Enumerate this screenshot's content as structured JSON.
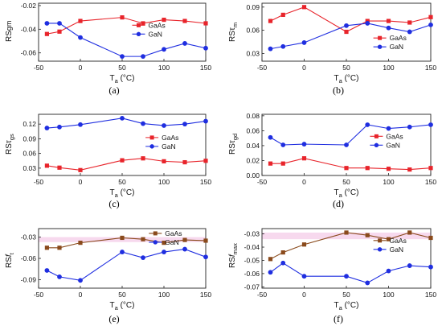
{
  "colors": {
    "GaAs": "#e8242b",
    "GaN": "#1f2ee0",
    "GaAs_brown": "#8a4a1c",
    "highlight": "#f7d9ee"
  },
  "chart_data": [
    {
      "type": "line",
      "panel_label": "(a)",
      "ylabel": "RS",
      "ylabel_sub": "gm",
      "ylabel_prefix_sub": "",
      "xlabel": "T",
      "xlabel_sub": "a",
      "xlabel_unit": " (°C)",
      "x": [
        -40,
        -25,
        0,
        50,
        75,
        100,
        125,
        150
      ],
      "xlim": [
        -50,
        150
      ],
      "xticks": [
        "-50",
        "0",
        "50",
        "100",
        "150"
      ],
      "xtick_values": [
        -50,
        0,
        50,
        100,
        150
      ],
      "ylim": [
        -0.067,
        -0.018
      ],
      "yticks": [
        "-0.02",
        "-0.04",
        "-0.06"
      ],
      "ytick_values": [
        -0.02,
        -0.04,
        -0.06
      ],
      "legend": "middle-right",
      "series": [
        {
          "name": "GaAs",
          "color": "GaAs",
          "marker": "square",
          "values": [
            -0.044,
            -0.042,
            -0.033,
            -0.03,
            -0.035,
            -0.032,
            -0.033,
            -0.035
          ]
        },
        {
          "name": "GaN",
          "color": "GaN",
          "marker": "circle",
          "values": [
            -0.035,
            -0.035,
            -0.047,
            -0.063,
            -0.063,
            -0.057,
            -0.052,
            -0.056
          ]
        }
      ]
    },
    {
      "type": "line",
      "panel_label": "(b)",
      "ylabel": "RS",
      "ylabel_sub": "m",
      "ylabel_greek": "τ",
      "xlabel": "T",
      "xlabel_sub": "a",
      "xlabel_unit": " (°C)",
      "x": [
        -40,
        -25,
        0,
        50,
        75,
        100,
        125,
        150
      ],
      "xlim": [
        -50,
        150
      ],
      "xticks": [
        "-50",
        "0",
        "50",
        "100",
        "150"
      ],
      "xtick_values": [
        -50,
        0,
        50,
        100,
        150
      ],
      "ylim": [
        0.02,
        0.095
      ],
      "yticks": [
        "0.09",
        "0.06",
        "0.03"
      ],
      "ytick_values": [
        0.09,
        0.06,
        0.03
      ],
      "legend": "bottom-right",
      "series": [
        {
          "name": "GaAs",
          "color": "GaAs",
          "marker": "square",
          "values": [
            0.072,
            0.08,
            0.09,
            0.058,
            0.072,
            0.072,
            0.07,
            0.077
          ]
        },
        {
          "name": "GaN",
          "color": "GaN",
          "marker": "circle",
          "values": [
            0.036,
            0.039,
            0.044,
            0.066,
            0.069,
            0.063,
            0.058,
            0.067
          ]
        }
      ]
    },
    {
      "type": "line",
      "panel_label": "(c)",
      "ylabel": "RS",
      "ylabel_sub": "gs",
      "ylabel_greek": "τ",
      "xlabel": "T",
      "xlabel_sub": "a",
      "xlabel_unit": " (°C)",
      "x": [
        -40,
        -25,
        0,
        50,
        75,
        100,
        125,
        150
      ],
      "xlim": [
        -50,
        150
      ],
      "xticks": [
        "-50",
        "0",
        "50",
        "100",
        "150"
      ],
      "xtick_values": [
        -50,
        0,
        50,
        100,
        150
      ],
      "ylim": [
        0.015,
        0.14
      ],
      "yticks": [
        "0.12",
        "0.09",
        "0.06",
        "0.03"
      ],
      "ytick_values": [
        0.12,
        0.09,
        0.06,
        0.03
      ],
      "legend": "middle-right",
      "series": [
        {
          "name": "GaAs",
          "color": "GaAs",
          "marker": "square",
          "values": [
            0.035,
            0.031,
            0.026,
            0.046,
            0.05,
            0.044,
            0.042,
            0.045
          ]
        },
        {
          "name": "GaN",
          "color": "GaN",
          "marker": "circle",
          "values": [
            0.112,
            0.114,
            0.119,
            0.132,
            0.121,
            0.117,
            0.12,
            0.126
          ]
        }
      ]
    },
    {
      "type": "line",
      "panel_label": "(d)",
      "ylabel": "RS",
      "ylabel_sub": "gd",
      "ylabel_greek": "τ",
      "xlabel": "T",
      "xlabel_sub": "a",
      "xlabel_unit": " (°C)",
      "x": [
        -40,
        -25,
        0,
        50,
        75,
        100,
        125,
        150
      ],
      "xlim": [
        -50,
        150
      ],
      "xticks": [
        "-50",
        "0",
        "50",
        "100",
        "150"
      ],
      "xtick_values": [
        -50,
        0,
        50,
        100,
        150
      ],
      "ylim": [
        0.0,
        0.082
      ],
      "yticks": [
        "0.08",
        "0.06",
        "0.04",
        "0.02",
        "0.00"
      ],
      "ytick_values": [
        0.08,
        0.06,
        0.04,
        0.02,
        0.0
      ],
      "legend": "middle-right",
      "series": [
        {
          "name": "GaAs",
          "color": "GaAs",
          "marker": "square",
          "values": [
            0.016,
            0.016,
            0.023,
            0.01,
            0.01,
            0.009,
            0.008,
            0.01
          ]
        },
        {
          "name": "GaN",
          "color": "GaN",
          "marker": "circle",
          "values": [
            0.051,
            0.041,
            0.042,
            0.041,
            0.068,
            0.063,
            0.065,
            0.068
          ]
        }
      ]
    },
    {
      "type": "line",
      "panel_label": "(e)",
      "ylabel": "RS",
      "ylabel_sub": "ft",
      "ylabel_script": "f",
      "ylabel_script_sub": "t",
      "xlabel": "T",
      "xlabel_sub": "a",
      "xlabel_unit": " (°C)",
      "x": [
        -40,
        -25,
        0,
        50,
        75,
        100,
        125,
        150
      ],
      "xlim": [
        -50,
        150
      ],
      "xticks": [
        "-50",
        "0",
        "50",
        "100",
        "150"
      ],
      "xtick_values": [
        -50,
        0,
        50,
        100,
        150
      ],
      "ylim": [
        -0.102,
        -0.018
      ],
      "yticks": [
        "-0.03",
        "-0.06",
        "-0.09"
      ],
      "ytick_values": [
        -0.03,
        -0.06,
        -0.09
      ],
      "legend": "top-right",
      "highlight_band": [
        -0.037,
        -0.03
      ],
      "series": [
        {
          "name": "GaAs",
          "color": "GaAs_brown",
          "marker": "square",
          "values": [
            -0.045,
            -0.045,
            -0.038,
            -0.031,
            -0.033,
            -0.038,
            -0.034,
            -0.035
          ]
        },
        {
          "name": "GaN",
          "color": "GaN",
          "marker": "circle",
          "values": [
            -0.077,
            -0.086,
            -0.091,
            -0.051,
            -0.059,
            -0.051,
            -0.047,
            -0.058
          ]
        }
      ]
    },
    {
      "type": "line",
      "panel_label": "(f)",
      "ylabel": "RS",
      "ylabel_sub": "fmax",
      "ylabel_script": "f",
      "ylabel_script_sub": "max",
      "xlabel": "T",
      "xlabel_sub": "a",
      "xlabel_unit": " (°C)",
      "x": [
        -40,
        -25,
        0,
        50,
        75,
        100,
        125,
        150
      ],
      "xlim": [
        -50,
        150
      ],
      "xticks": [
        "-50",
        "0",
        "50",
        "100",
        "150"
      ],
      "xtick_values": [
        -50,
        0,
        50,
        100,
        150
      ],
      "ylim": [
        -0.071,
        -0.026
      ],
      "yticks": [
        "-0.03",
        "-0.04",
        "-0.05",
        "-0.06",
        "-0.07"
      ],
      "ytick_values": [
        -0.03,
        -0.04,
        -0.05,
        -0.06,
        -0.07
      ],
      "legend": "middle-right",
      "highlight_band": [
        -0.034,
        -0.029
      ],
      "series": [
        {
          "name": "GaAs",
          "color": "GaAs_brown",
          "marker": "square",
          "values": [
            -0.049,
            -0.044,
            -0.038,
            -0.029,
            -0.031,
            -0.034,
            -0.029,
            -0.033
          ]
        },
        {
          "name": "GaN",
          "color": "GaN",
          "marker": "circle",
          "values": [
            -0.059,
            -0.052,
            -0.062,
            -0.062,
            -0.067,
            -0.058,
            -0.054,
            -0.055
          ]
        }
      ]
    }
  ]
}
